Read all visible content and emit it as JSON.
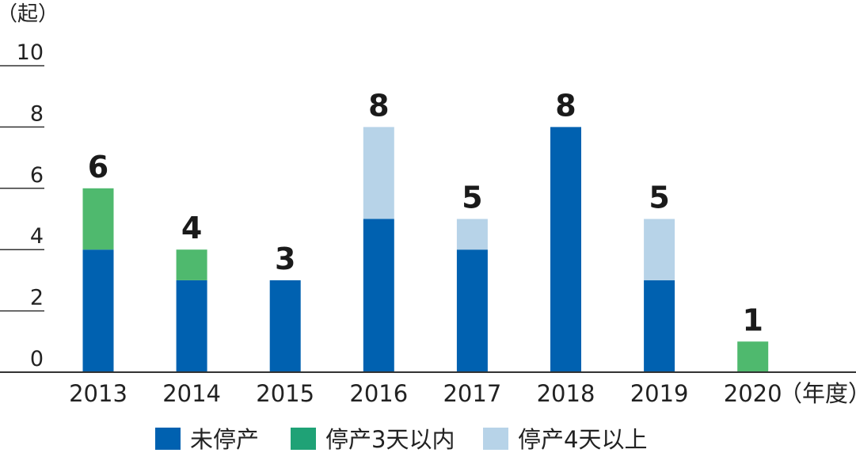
{
  "chart_data": {
    "type": "bar",
    "stacked": true,
    "y_unit_label": "（起）",
    "x_unit_label": "（年度）",
    "categories": [
      "2013",
      "2014",
      "2015",
      "2016",
      "2017",
      "2018",
      "2019",
      "2020"
    ],
    "series": [
      {
        "name": "未停产",
        "color": "#0061b0",
        "values": [
          4,
          3,
          3,
          5,
          4,
          8,
          3,
          0
        ]
      },
      {
        "name": "停产3天以内",
        "color": "#4fb96e",
        "values": [
          2,
          1,
          0,
          0,
          0,
          0,
          0,
          1
        ]
      },
      {
        "name": "停产4天以上",
        "color": "#b7d3e8",
        "values": [
          0,
          0,
          0,
          3,
          1,
          0,
          2,
          0
        ]
      }
    ],
    "totals": [
      "6",
      "4",
      "3",
      "8",
      "5",
      "8",
      "5",
      "1"
    ],
    "y_ticks": [
      "0",
      "2",
      "4",
      "6",
      "8",
      "10"
    ],
    "ylim": [
      0,
      10
    ],
    "grid": false,
    "legend_position": "bottom",
    "legend_swatch_colors": [
      "#0061b0",
      "#1fa276",
      "#b7d3e8"
    ]
  }
}
